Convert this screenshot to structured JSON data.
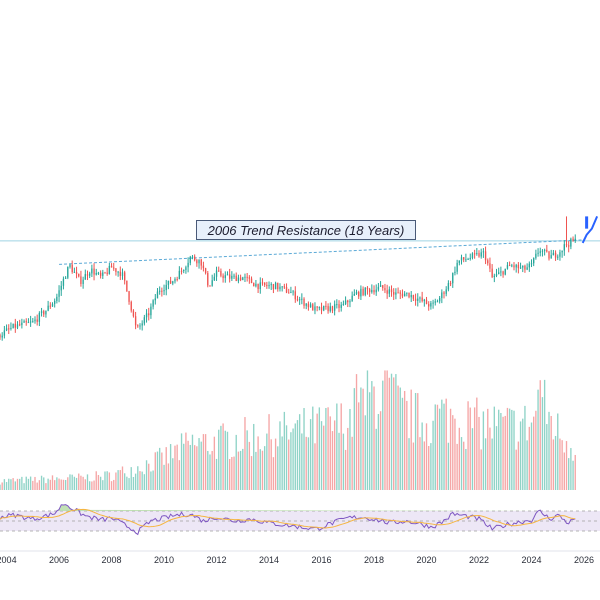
{
  "colors": {
    "up": "#26a69a",
    "down": "#ef5350",
    "vol_up": "#8fd3c7",
    "vol_down": "#f5a6a6",
    "resistance": "#5aa9d6",
    "level": "#9fd3e3",
    "rsi_line": "#7e57c2",
    "rsi_ma": "#f5b642",
    "rsi_band": "#ede7f6",
    "rsi_ob_fill": "#b6dca8",
    "projection": "#2962ff"
  },
  "chart_data": {
    "type": "candlestick",
    "interval": "monthly",
    "annotation": "2006 Trend Resistance (18 Years)",
    "x_tick_labels": [
      "2004",
      "2006",
      "2008",
      "2010",
      "2012",
      "2014",
      "2016",
      "2018",
      "2020",
      "2022",
      "2024",
      "2026"
    ],
    "x_range": [
      2003.75,
      2026.0
    ],
    "price_range": [
      0,
      100
    ],
    "resistance_line": {
      "start": [
        2006.0,
        66.5
      ],
      "end": [
        2026.0,
        78.5
      ]
    },
    "horizontal_level": 78.0,
    "price_anchors": [
      [
        2003.75,
        32.0
      ],
      [
        2004.3,
        36.0
      ],
      [
        2005.0,
        38.0
      ],
      [
        2005.5,
        44.0
      ],
      [
        2005.9,
        50.0
      ],
      [
        2006.2,
        60.0
      ],
      [
        2006.4,
        66.0
      ],
      [
        2006.8,
        58.0
      ],
      [
        2007.2,
        64.0
      ],
      [
        2007.6,
        60.0
      ],
      [
        2008.0,
        65.0
      ],
      [
        2008.4,
        62.0
      ],
      [
        2008.7,
        48.0
      ],
      [
        2008.95,
        34.0
      ],
      [
        2009.4,
        42.0
      ],
      [
        2009.8,
        54.0
      ],
      [
        2010.3,
        58.0
      ],
      [
        2010.7,
        64.0
      ],
      [
        2011.0,
        70.0
      ],
      [
        2011.4,
        68.0
      ],
      [
        2011.7,
        56.0
      ],
      [
        2012.0,
        62.0
      ],
      [
        2012.5,
        60.0
      ],
      [
        2013.0,
        60.0
      ],
      [
        2013.6,
        56.0
      ],
      [
        2014.2,
        56.0
      ],
      [
        2014.8,
        53.0
      ],
      [
        2015.3,
        48.0
      ],
      [
        2015.8,
        44.0
      ],
      [
        2016.3,
        45.0
      ],
      [
        2016.8,
        46.0
      ],
      [
        2017.3,
        52.0
      ],
      [
        2017.8,
        54.0
      ],
      [
        2018.3,
        55.0
      ],
      [
        2018.8,
        52.0
      ],
      [
        2019.3,
        52.0
      ],
      [
        2019.9,
        48.0
      ],
      [
        2020.2,
        46.0
      ],
      [
        2020.5,
        50.0
      ],
      [
        2020.9,
        58.0
      ],
      [
        2021.2,
        68.0
      ],
      [
        2021.7,
        70.0
      ],
      [
        2022.2,
        72.0
      ],
      [
        2022.5,
        60.0
      ],
      [
        2022.8,
        62.0
      ],
      [
        2023.2,
        66.0
      ],
      [
        2023.7,
        64.0
      ],
      [
        2024.0,
        66.0
      ],
      [
        2024.3,
        74.0
      ],
      [
        2024.7,
        70.0
      ],
      [
        2025.0,
        72.0
      ],
      [
        2025.3,
        76.0
      ],
      [
        2025.6,
        78.0
      ]
    ],
    "spike": {
      "x": 2025.35,
      "high": 90.0
    },
    "projection_points": [
      [
        2025.95,
        77.0
      ],
      [
        2026.1,
        81.0
      ],
      [
        2026.3,
        84.0
      ],
      [
        2026.5,
        90.0
      ]
    ],
    "volume": {
      "range": [
        0,
        100
      ],
      "anchors": [
        [
          2003.75,
          8
        ],
        [
          2005.0,
          9
        ],
        [
          2006.0,
          10
        ],
        [
          2007.0,
          11
        ],
        [
          2008.0,
          13
        ],
        [
          2009.0,
          20
        ],
        [
          2010.0,
          28
        ],
        [
          2011.0,
          40
        ],
        [
          2012.0,
          42
        ],
        [
          2013.0,
          46
        ],
        [
          2014.0,
          48
        ],
        [
          2015.0,
          52
        ],
        [
          2016.0,
          55
        ],
        [
          2017.0,
          60
        ],
        [
          2018.0,
          85
        ],
        [
          2018.5,
          90
        ],
        [
          2019.0,
          70
        ],
        [
          2019.5,
          64
        ],
        [
          2020.0,
          60
        ],
        [
          2020.5,
          66
        ],
        [
          2021.0,
          64
        ],
        [
          2022.0,
          58
        ],
        [
          2023.0,
          56
        ],
        [
          2024.0,
          58
        ],
        [
          2024.3,
          80
        ],
        [
          2025.0,
          52
        ],
        [
          2025.6,
          38
        ]
      ],
      "peaks": [
        [
          2017.3,
          95
        ],
        [
          2018.6,
          92
        ],
        [
          2024.3,
          90
        ]
      ]
    },
    "rsi": {
      "range": [
        0,
        100
      ],
      "overbought": 70,
      "oversold": 30,
      "anchors": [
        [
          2003.75,
          58
        ],
        [
          2004.3,
          62
        ],
        [
          2005.0,
          54
        ],
        [
          2005.8,
          64
        ],
        [
          2006.2,
          86
        ],
        [
          2006.6,
          72
        ],
        [
          2007.0,
          60
        ],
        [
          2007.6,
          52
        ],
        [
          2008.0,
          56
        ],
        [
          2008.5,
          42
        ],
        [
          2009.0,
          28
        ],
        [
          2009.5,
          50
        ],
        [
          2010.0,
          56
        ],
        [
          2010.5,
          62
        ],
        [
          2011.0,
          64
        ],
        [
          2011.5,
          50
        ],
        [
          2012.0,
          58
        ],
        [
          2012.7,
          50
        ],
        [
          2013.3,
          54
        ],
        [
          2014.0,
          46
        ],
        [
          2014.6,
          42
        ],
        [
          2015.2,
          38
        ],
        [
          2015.8,
          34
        ],
        [
          2016.3,
          44
        ],
        [
          2017.0,
          56
        ],
        [
          2017.5,
          58
        ],
        [
          2018.0,
          54
        ],
        [
          2018.6,
          46
        ],
        [
          2019.2,
          50
        ],
        [
          2019.8,
          44
        ],
        [
          2020.2,
          38
        ],
        [
          2020.6,
          48
        ],
        [
          2021.0,
          64
        ],
        [
          2021.5,
          60
        ],
        [
          2022.0,
          54
        ],
        [
          2022.5,
          34
        ],
        [
          2023.0,
          42
        ],
        [
          2023.5,
          48
        ],
        [
          2024.0,
          52
        ],
        [
          2024.3,
          70
        ],
        [
          2024.7,
          54
        ],
        [
          2025.0,
          62
        ],
        [
          2025.4,
          46
        ],
        [
          2025.7,
          56
        ]
      ]
    }
  }
}
